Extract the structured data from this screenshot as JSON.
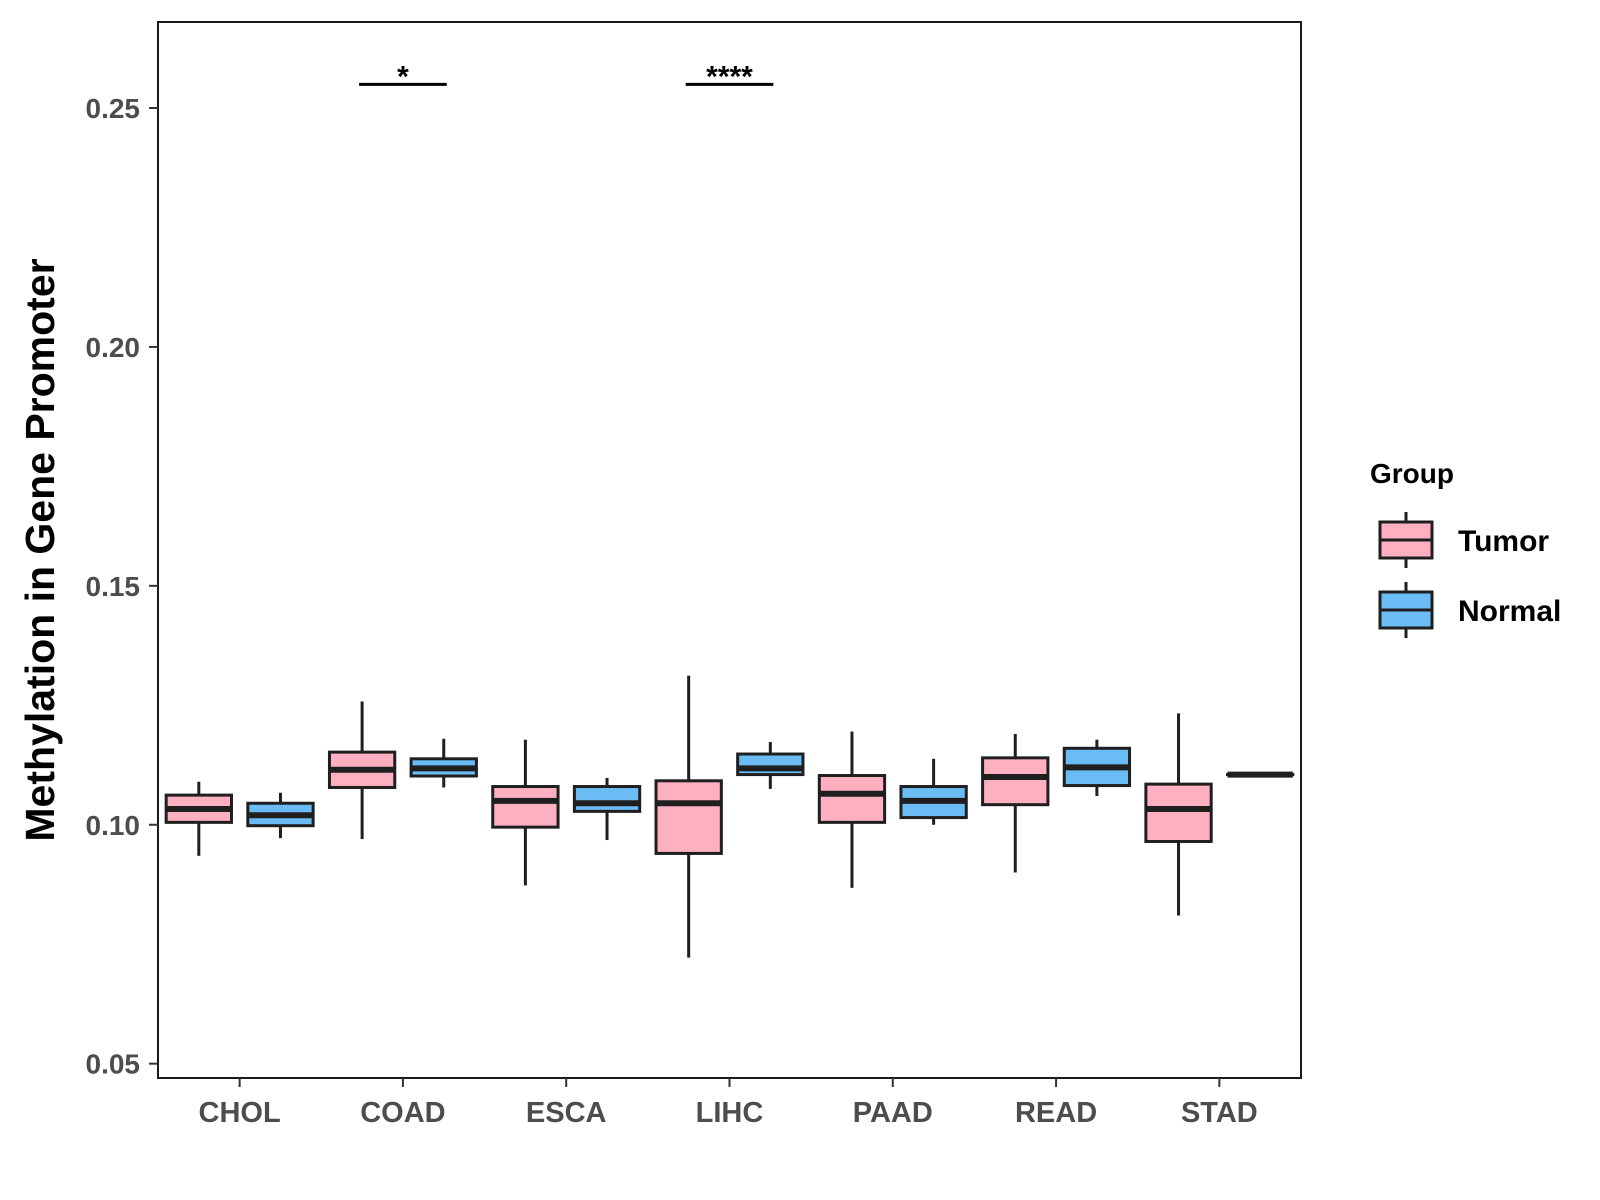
{
  "chart_data": {
    "type": "boxplot",
    "title": "",
    "xlabel": "",
    "ylabel": "Methylation in Gene Promoter",
    "ylim": [
      0.047,
      0.268
    ],
    "yticks": [
      0.05,
      0.1,
      0.15,
      0.2,
      0.25
    ],
    "ytick_labels": [
      "0.05",
      "0.10",
      "0.15",
      "0.20",
      "0.25"
    ],
    "grid": false,
    "categories": [
      "CHOL",
      "COAD",
      "ESCA",
      "LIHC",
      "PAAD",
      "READ",
      "STAD"
    ],
    "legend": {
      "title": "Group",
      "position": "right",
      "items": [
        {
          "name": "Tumor",
          "color": "#FFB0C0"
        },
        {
          "name": "Normal",
          "color": "#6BBCF5"
        }
      ]
    },
    "series": [
      {
        "name": "Tumor",
        "color": "#FFB0C0",
        "boxes": [
          {
            "category": "CHOL",
            "min": 0.0935,
            "q1": 0.1005,
            "median": 0.1033,
            "q3": 0.1062,
            "max": 0.109
          },
          {
            "category": "COAD",
            "min": 0.097,
            "q1": 0.1078,
            "median": 0.1115,
            "q3": 0.1152,
            "max": 0.1258
          },
          {
            "category": "ESCA",
            "min": 0.0873,
            "q1": 0.0995,
            "median": 0.105,
            "q3": 0.108,
            "max": 0.1178
          },
          {
            "category": "LIHC",
            "min": 0.0722,
            "q1": 0.094,
            "median": 0.1045,
            "q3": 0.1092,
            "max": 0.1312
          },
          {
            "category": "PAAD",
            "min": 0.0868,
            "q1": 0.1005,
            "median": 0.1065,
            "q3": 0.1103,
            "max": 0.1195
          },
          {
            "category": "READ",
            "min": 0.09,
            "q1": 0.1042,
            "median": 0.11,
            "q3": 0.114,
            "max": 0.119
          },
          {
            "category": "STAD",
            "min": 0.081,
            "q1": 0.0965,
            "median": 0.1033,
            "q3": 0.1085,
            "max": 0.1233
          }
        ]
      },
      {
        "name": "Normal",
        "color": "#6BBCF5",
        "boxes": [
          {
            "category": "CHOL",
            "min": 0.0972,
            "q1": 0.0998,
            "median": 0.102,
            "q3": 0.1045,
            "max": 0.1067
          },
          {
            "category": "COAD",
            "min": 0.1078,
            "q1": 0.1102,
            "median": 0.1118,
            "q3": 0.1138,
            "max": 0.118
          },
          {
            "category": "ESCA",
            "min": 0.0968,
            "q1": 0.1028,
            "median": 0.1045,
            "q3": 0.108,
            "max": 0.1098
          },
          {
            "category": "LIHC",
            "min": 0.1075,
            "q1": 0.1105,
            "median": 0.1118,
            "q3": 0.1148,
            "max": 0.1173
          },
          {
            "category": "PAAD",
            "min": 0.1,
            "q1": 0.1015,
            "median": 0.105,
            "q3": 0.108,
            "max": 0.1138
          },
          {
            "category": "READ",
            "min": 0.106,
            "q1": 0.1082,
            "median": 0.112,
            "q3": 0.116,
            "max": 0.1178
          },
          {
            "category": "STAD",
            "min": 0.1105,
            "q1": 0.1105,
            "median": 0.1105,
            "q3": 0.1105,
            "max": 0.1105
          }
        ]
      }
    ],
    "annotations": [
      {
        "category": "COAD",
        "label": "*",
        "y": 0.2585
      },
      {
        "category": "LIHC",
        "label": "****",
        "y": 0.2585
      }
    ]
  }
}
